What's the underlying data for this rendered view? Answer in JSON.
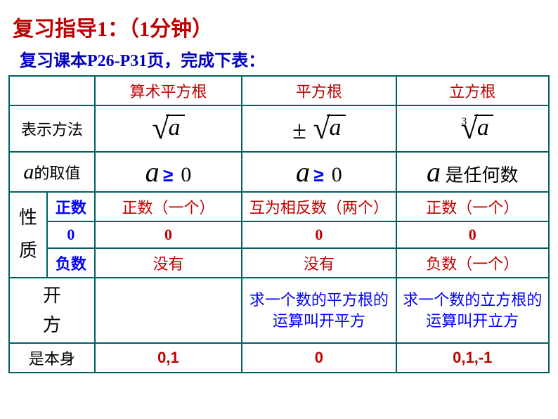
{
  "title": {
    "p1": "复习指导1：",
    "p2": "（1分钟）"
  },
  "subtitle": "复习课本P26-P31页，完成下表：",
  "headers": {
    "c1": "算术平方根",
    "c2": "平方根",
    "c3": "立方根"
  },
  "rows": {
    "repr": {
      "label": "表示方法",
      "c1_a": "a",
      "c2_pm": "±",
      "c2_a": "a",
      "c3_index": "3",
      "c3_a": "a"
    },
    "domain": {
      "label_a": "a",
      "label_rest": "的取值",
      "c1_a": "a",
      "c1_rel": "≥",
      "c1_zero": "0",
      "c2_a": "a",
      "c2_rel": "≥",
      "c2_zero": "0",
      "c3_a": "a",
      "c3_text": " 是任何数"
    },
    "prop": {
      "header": "性\n质",
      "pos_label": "正数",
      "pos_c1": "正数（一个）",
      "pos_c2": "互为相反数（两个）",
      "pos_c3": "正数（一个）",
      "zero_label": "0",
      "zero_c1": "0",
      "zero_c2": "0",
      "zero_c3": "0",
      "neg_label": "负数",
      "neg_c1": "没有",
      "neg_c2": "没有",
      "neg_c3": "负数（一个）"
    },
    "kaifang": {
      "label": "开\n方",
      "c1": "",
      "c2": "求一个数的平方根的运算叫开平方",
      "c3": "求一个数的立方根的运算叫开立方"
    },
    "self": {
      "label": "是本身",
      "c1": "0,1",
      "c2": "0",
      "c3": "0,1,-1"
    }
  },
  "colors": {
    "red": "#c00000",
    "blue": "#0000ff",
    "darkblue": "#0000c0",
    "border": "#006060"
  }
}
